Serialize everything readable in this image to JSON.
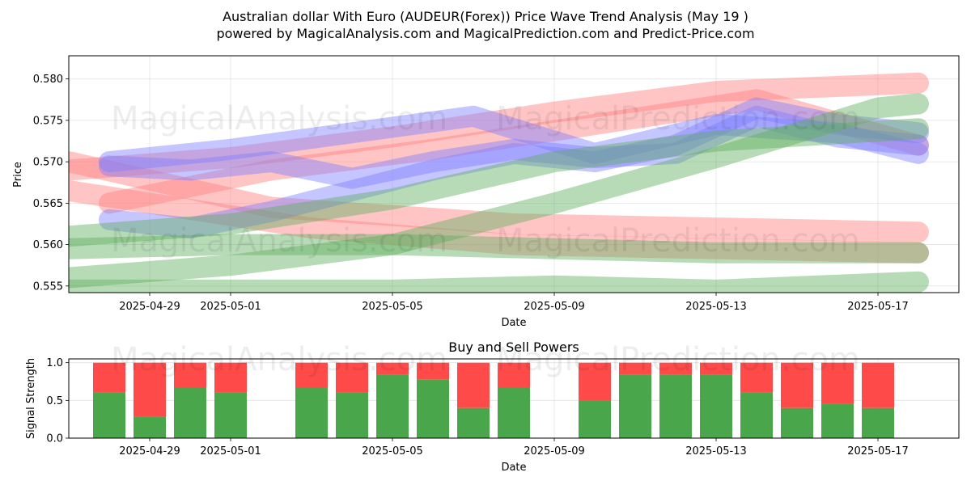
{
  "figure": {
    "title_line1": "Australian dollar With Euro (AUDEUR(Forex)) Price Wave Trend Analysis (May 19 )",
    "title_line2": "powered by MagicalAnalysis.com and MagicalPrediction.com and Predict-Price.com",
    "watermark_left": "MagicalAnalysis.com",
    "watermark_right": "MagicalPrediction.com"
  },
  "chart_data": [
    {
      "type": "line",
      "xlabel": "Date",
      "ylabel": "Price",
      "x_ticks": [
        "2025-04-29",
        "2025-05-01",
        "2025-05-05",
        "2025-05-09",
        "2025-05-13",
        "2025-05-17"
      ],
      "y_ticks": [
        "0.555",
        "0.560",
        "0.565",
        "0.570",
        "0.575",
        "0.580"
      ],
      "xlim": [
        "2025-04-27",
        "2025-05-19"
      ],
      "ylim": [
        0.5542,
        0.5828
      ],
      "grid": true,
      "colors": {
        "red": "#ff7f7f",
        "blue": "#7f7fff",
        "green": "#5fb05f"
      },
      "series": [
        {
          "color": "red",
          "x": [
            "2025-04-27",
            "2025-05-02",
            "2025-05-08",
            "2025-05-13",
            "2025-05-18"
          ],
          "y": [
            0.57,
            0.5645,
            0.5625,
            0.562,
            0.5615
          ]
        },
        {
          "color": "red",
          "x": [
            "2025-04-27",
            "2025-05-03",
            "2025-05-08",
            "2025-05-13",
            "2025-05-18"
          ],
          "y": [
            0.5665,
            0.562,
            0.56,
            0.5595,
            0.559
          ]
        },
        {
          "color": "red",
          "x": [
            "2025-04-27",
            "2025-05-01",
            "2025-05-05",
            "2025-05-09",
            "2025-05-13",
            "2025-05-18"
          ],
          "y": [
            0.569,
            0.5705,
            0.573,
            0.576,
            0.5785,
            0.5795
          ]
        },
        {
          "color": "red",
          "x": [
            "2025-04-28",
            "2025-05-02",
            "2025-05-06",
            "2025-05-10",
            "2025-05-14",
            "2025-05-18"
          ],
          "y": [
            0.565,
            0.569,
            0.5715,
            0.5745,
            0.5775,
            0.572
          ]
        },
        {
          "color": "blue",
          "x": [
            "2025-04-28",
            "2025-04-30",
            "2025-05-02",
            "2025-05-04",
            "2025-05-06",
            "2025-05-08",
            "2025-05-10",
            "2025-05-12",
            "2025-05-14",
            "2025-05-16",
            "2025-05-18"
          ],
          "y": [
            0.563,
            0.562,
            0.564,
            0.5665,
            0.569,
            0.571,
            0.57,
            0.572,
            0.5765,
            0.5745,
            0.5735
          ]
        },
        {
          "color": "blue",
          "x": [
            "2025-04-28",
            "2025-04-30",
            "2025-05-02",
            "2025-05-04",
            "2025-05-06",
            "2025-05-08",
            "2025-05-10",
            "2025-05-12",
            "2025-05-14",
            "2025-05-16",
            "2025-05-18"
          ],
          "y": [
            0.5695,
            0.569,
            0.57,
            0.568,
            0.57,
            0.5715,
            0.5705,
            0.571,
            0.5755,
            0.573,
            0.572
          ]
        },
        {
          "color": "blue",
          "x": [
            "2025-04-28",
            "2025-05-01",
            "2025-05-04",
            "2025-05-07",
            "2025-05-10",
            "2025-05-13",
            "2025-05-16",
            "2025-05-18"
          ],
          "y": [
            0.57,
            0.5715,
            0.5735,
            0.5755,
            0.571,
            0.5745,
            0.5735,
            0.571
          ]
        },
        {
          "color": "green",
          "x": [
            "2025-04-27",
            "2025-05-01",
            "2025-05-05",
            "2025-05-09",
            "2025-05-13",
            "2025-05-17",
            "2025-05-18"
          ],
          "y": [
            0.556,
            0.5575,
            0.56,
            0.565,
            0.5705,
            0.5765,
            0.577
          ]
        },
        {
          "color": "green",
          "x": [
            "2025-04-27",
            "2025-05-01",
            "2025-05-05",
            "2025-05-09",
            "2025-05-13",
            "2025-05-18"
          ],
          "y": [
            0.5595,
            0.56,
            0.56,
            0.5595,
            0.559,
            0.559
          ]
        },
        {
          "color": "green",
          "x": [
            "2025-04-27",
            "2025-05-01",
            "2025-05-05",
            "2025-05-09",
            "2025-05-13",
            "2025-05-18"
          ],
          "y": [
            0.561,
            0.5625,
            0.5655,
            0.57,
            0.5725,
            0.574
          ]
        },
        {
          "color": "green",
          "x": [
            "2025-04-27",
            "2025-05-01",
            "2025-05-05",
            "2025-05-09",
            "2025-05-13",
            "2025-05-18"
          ],
          "y": [
            0.5545,
            0.5545,
            0.5545,
            0.555,
            0.5545,
            0.5555
          ]
        }
      ]
    },
    {
      "type": "bar",
      "title": "Buy and Sell Powers",
      "xlabel": "Date",
      "ylabel": "Signal Strength",
      "x_ticks": [
        "2025-04-29",
        "2025-05-01",
        "2025-05-05",
        "2025-05-09",
        "2025-05-13",
        "2025-05-17"
      ],
      "y_ticks": [
        "0.0",
        "0.5",
        "1.0"
      ],
      "xlim": [
        "2025-04-27",
        "2025-05-19"
      ],
      "ylim": [
        0,
        1.05
      ],
      "stacked": true,
      "colors": {
        "buy": "#4aa64a",
        "sell": "#ff4a4a"
      },
      "categories": [
        "2025-04-28",
        "2025-04-29",
        "2025-04-30",
        "2025-05-01",
        "2025-05-03",
        "2025-05-04",
        "2025-05-05",
        "2025-05-06",
        "2025-05-07",
        "2025-05-08",
        "2025-05-10",
        "2025-05-11",
        "2025-05-12",
        "2025-05-13",
        "2025-05-14",
        "2025-05-15",
        "2025-05-16",
        "2025-05-17"
      ],
      "buy": [
        0.61,
        0.28,
        0.67,
        0.61,
        0.67,
        0.61,
        0.84,
        0.78,
        0.4,
        0.67,
        0.5,
        0.84,
        0.84,
        0.84,
        0.61,
        0.4,
        0.46,
        0.4
      ],
      "sell": [
        0.39,
        0.72,
        0.33,
        0.39,
        0.33,
        0.39,
        0.16,
        0.22,
        0.6,
        0.33,
        0.5,
        0.16,
        0.16,
        0.16,
        0.39,
        0.6,
        0.54,
        0.6
      ]
    }
  ]
}
